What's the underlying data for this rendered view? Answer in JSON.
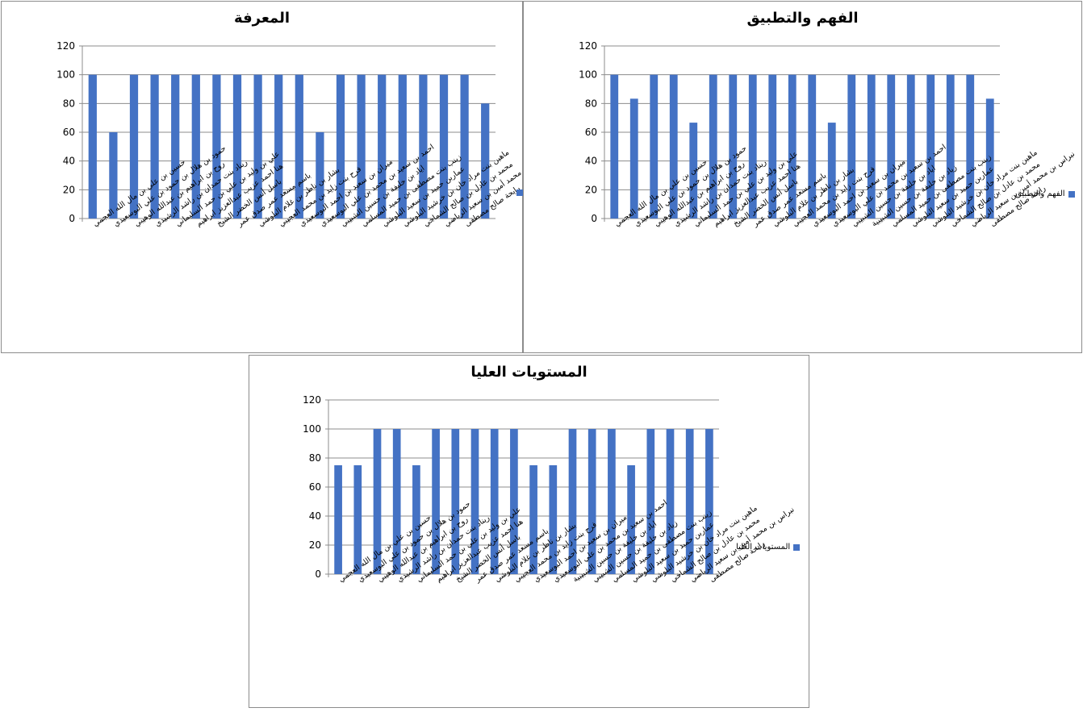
{
  "chart_data": [
    {
      "type": "bar",
      "title": "المعرفة",
      "legend": "",
      "legend_position": "right",
      "ylim": [
        0,
        120
      ],
      "yticks": [
        0,
        20,
        40,
        60,
        80,
        100,
        120
      ],
      "grid": true,
      "color": "#4472C4",
      "categories": [
        "حسين بن علي بن مال الله العجمي",
        "حمود بن هلال بن حمود بن علي البوسعيدي",
        "روح بن ابراهيم بن عبدالله الوهيبي",
        "ريناد بنت حمدان بن راشد الرشيدي",
        "علي بن وليد بن علي بن حمد السليماني",
        "هنا احمد عزيب عبدالعزيز ابراهيم",
        "باسل أنس الخضر الشيخ",
        "باسم مسعد عمر صدق عمر",
        "بشار بن ناظر بن غلام البلوشي",
        "فرح بنت زايد بن محمد العجيبي",
        "ميران بن سعيد بن احمد البوسعيدي",
        "احمد بن سعيد بن محمد بن علي البوسعيدي",
        "اياد بن خليفة بن حسين الشبيبي",
        "زينب بنت مصطفى بن حميد المسلمي",
        "عماربن حميد بن سعيد البلوشي",
        "ماهين بنت مراد خان بن خرشيد البلوشي",
        "محمد بن عادل بن صالح الشماخي",
        "نبراس بن محمد أمين بن سعيد الرياضي",
        "رايحة صالح مصطفى",
        ""
      ],
      "values": [
        100,
        60,
        100,
        100,
        100,
        100,
        100,
        100,
        100,
        100,
        100,
        60,
        100,
        100,
        100,
        100,
        100,
        100,
        100,
        80
      ]
    },
    {
      "type": "bar",
      "title": "الفهم والتطبيق",
      "legend": "الفهم والتطبيق",
      "legend_position": "right",
      "ylim": [
        0,
        120
      ],
      "yticks": [
        0,
        20,
        40,
        60,
        80,
        100,
        120
      ],
      "grid": true,
      "color": "#4472C4",
      "categories": [
        "حسين بن علي بن مال الله العجمي",
        "حمود بن هلال بن حمود بن علي البوسعيدي",
        "روح بن ابراهيم بن عبدالله الوهيبي",
        "ريناد بنت حمدان بن راشد الرشيدي",
        "علي بن وليد بن علي بن حمد السليماني",
        "هنا احمد عزيب عبدالعزيز ابراهيم",
        "باسل أنس الخضر الشيخ",
        "باسم مسعد عمر صدق عمر",
        "بشار بن ناظر بن غلام البلوشي",
        "فرح بنت زايد بن محمد العجيبي",
        "ميران بن سعيد بن احمد البوسعيدي",
        "احمد بن سعيد بن محمد بن علي البوسعيدي",
        "اياد بن خليفة بن حسين الشبيبي",
        "زياد بن خليفة بن حسين الشبيبية",
        "زينب بنت مصطفى بن حميد المسلمي",
        "عماربن حميد بن سعيد البلوشي",
        "ماهين بنت مراد خان بن خرشيد البلوشي",
        "محمد بن عادل بن صالح الشماخي",
        "نبراس بن محمد أمين بن سعيد الرياضي",
        "رايحة صالح مصطفى"
      ],
      "values": [
        100,
        83.33,
        100,
        100,
        66.67,
        100,
        100,
        100,
        100,
        100,
        100,
        66.67,
        100,
        100,
        100,
        100,
        100,
        100,
        100,
        83.33
      ]
    },
    {
      "type": "bar",
      "title": "المستويات العليا",
      "legend": "المستويات العليا",
      "legend_position": "right",
      "ylim": [
        0,
        120
      ],
      "yticks": [
        0,
        20,
        40,
        60,
        80,
        100,
        120
      ],
      "grid": true,
      "color": "#4472C4",
      "categories": [
        "حسين بن علي بن مال الله العجمي",
        "حمود بن هلال بن حمود بن علي البوسعيدي",
        "روح بن ابراهيم بن عبدالله الوهيبي",
        "ريناد بنت حمدان بن راشد الرشيدي",
        "علي بن وليد بن علي بن حمد السليماني",
        "هنا احمد عزيب عبدالعزيز ابراهيم",
        "باسل أنس الخضر الشيخ",
        "باسم مسعد عمر صدق عمر",
        "بشار بن ناظر بن غلام البلوشي",
        "فرح بنت زايد بن محمد العجيبي",
        "ميران بن سعيد بن احمد البوسعيدي",
        "احمد بن سعيد بن محمد بن علي البوسعيدي",
        "اياد بن خليفة بن حسين الشبيبية",
        "زياد بن خليفة بن حسين الشبيبي",
        "زينب بنت مصطفى بن حميد المسلمي",
        "عماربن حميد بن سعيد البلوشي",
        "ماهين بنت مراد خان بن خرشيد البلوشي",
        "محمد بن عادل بن صالح الشماخي",
        "نبراس بن محمد أمين بن سعيد الرياضي",
        "رايحة صالح مصطفى"
      ],
      "values": [
        75,
        75,
        100,
        100,
        75,
        100,
        100,
        100,
        100,
        100,
        75,
        75,
        100,
        100,
        100,
        75,
        100,
        100,
        100,
        100
      ]
    }
  ]
}
